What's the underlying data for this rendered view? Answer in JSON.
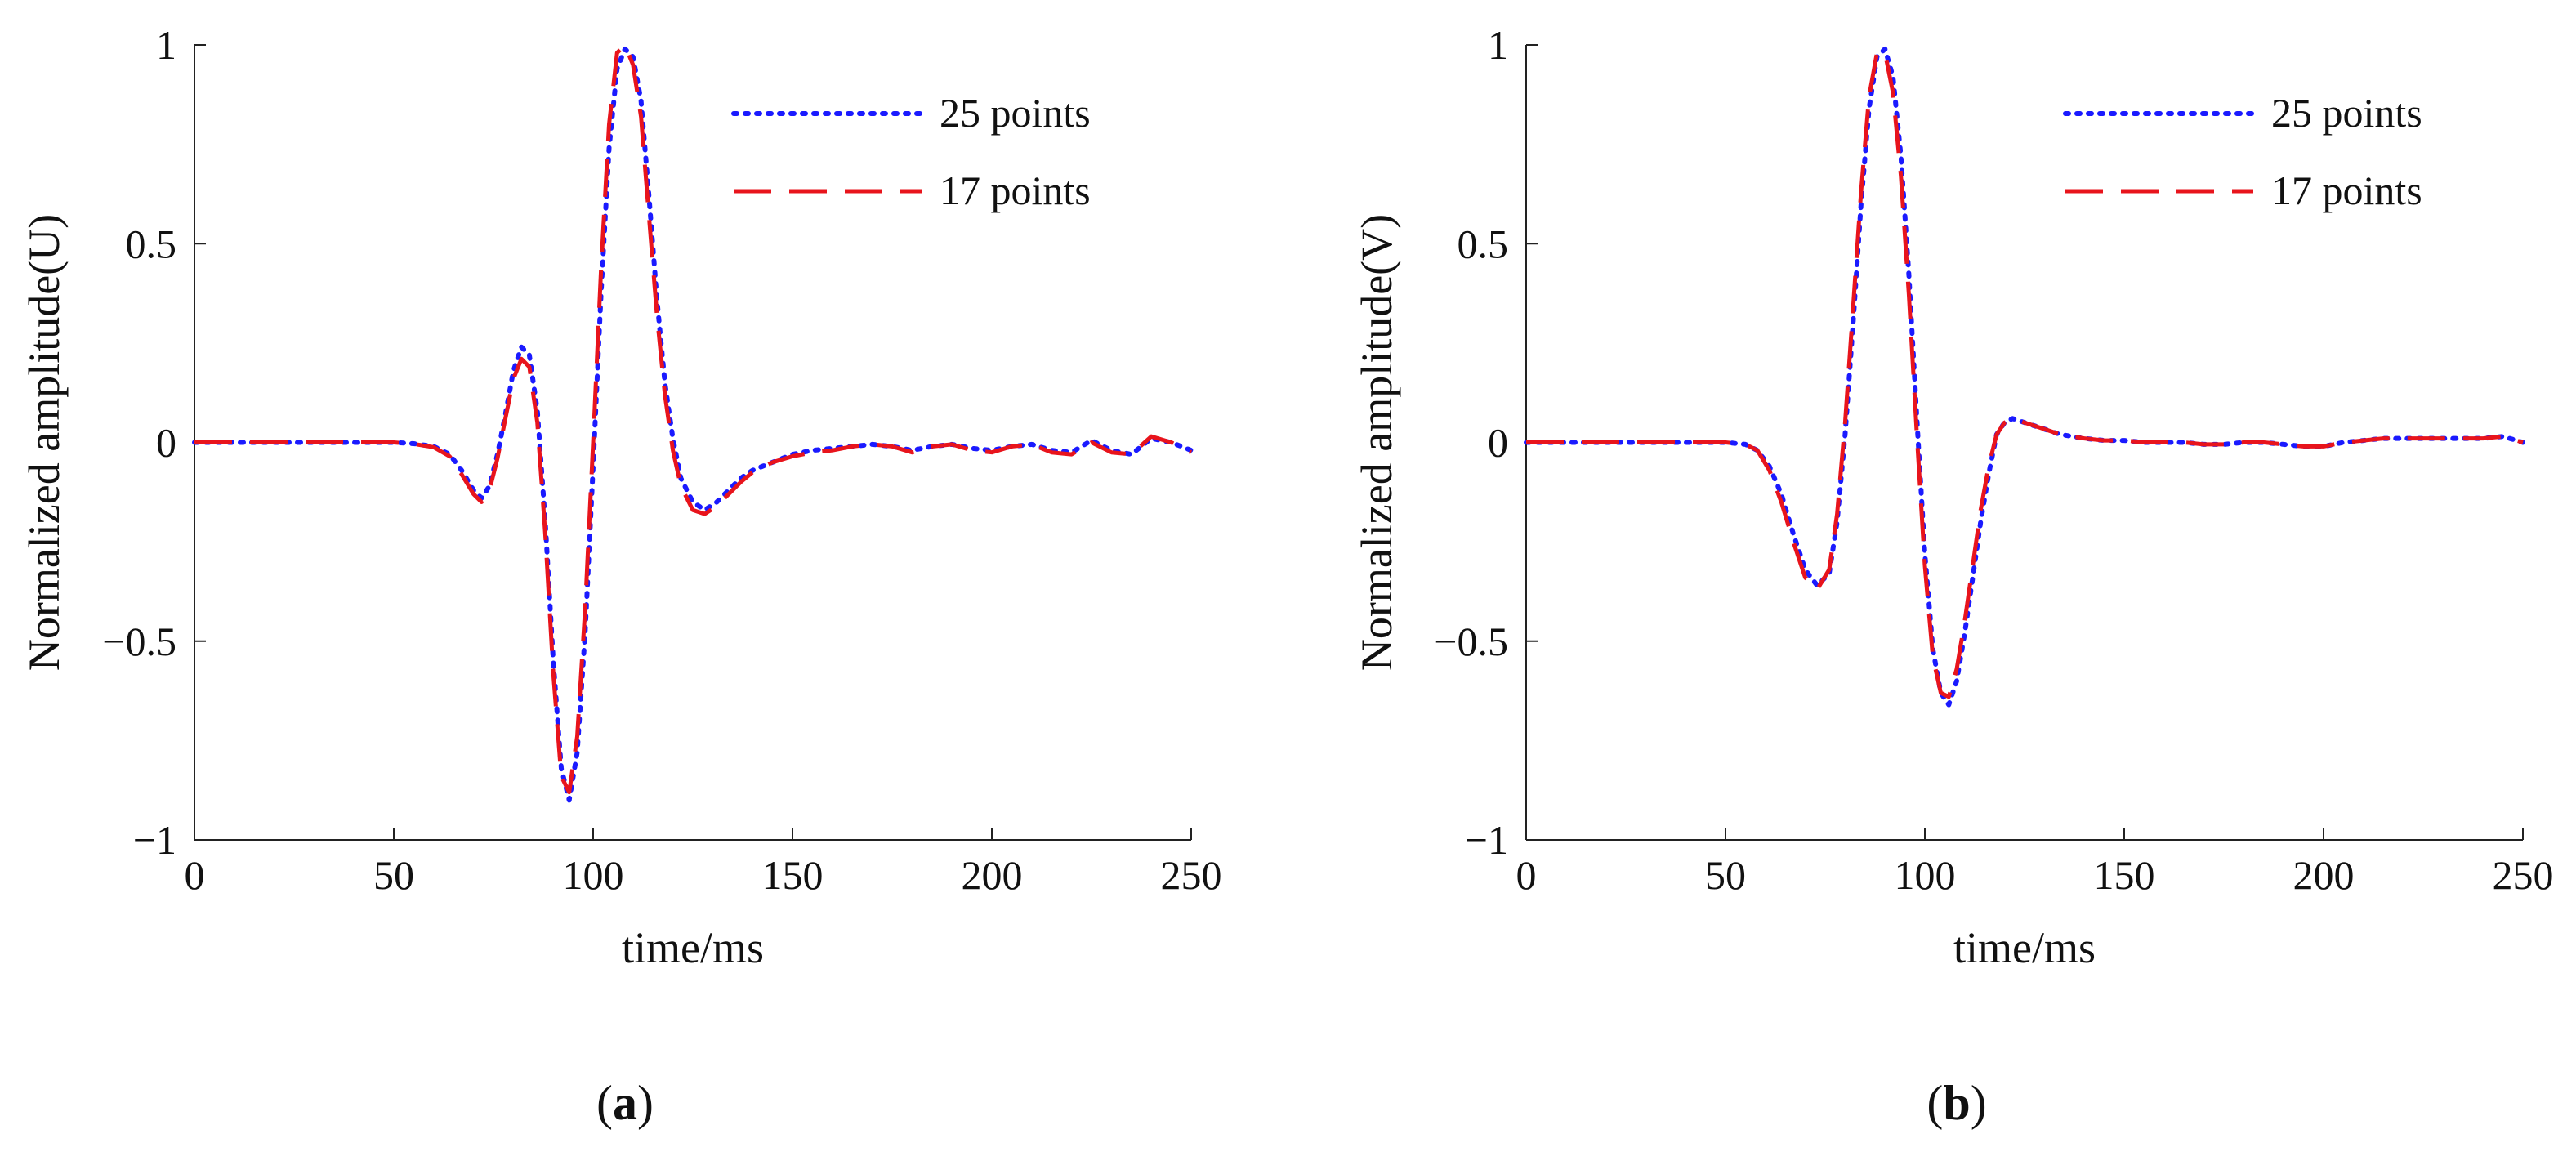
{
  "figure": {
    "panels": [
      {
        "tag_open": "(",
        "tag_letter": "a",
        "tag_close": ")"
      },
      {
        "tag_open": "(",
        "tag_letter": "b",
        "tag_close": ")"
      }
    ]
  },
  "chart_data": [
    {
      "type": "line",
      "xlabel": "time/ms",
      "ylabel": "Normalized amplitude(U)",
      "xlim": [
        0,
        250
      ],
      "ylim": [
        -1,
        1
      ],
      "xticks": [
        0,
        50,
        100,
        150,
        200,
        250
      ],
      "xtick_labels": [
        "0",
        "50",
        "100",
        "150",
        "200",
        "250"
      ],
      "yticks": [
        -1,
        -0.5,
        0,
        0.5,
        1
      ],
      "ytick_labels": [
        "−1",
        "−0.5",
        "0",
        "0.5",
        "1"
      ],
      "grid": false,
      "legend_position": "top-right",
      "series": [
        {
          "name": "25 points",
          "color": "#1a1aff",
          "style": "dotted",
          "x": [
            0,
            10,
            20,
            30,
            40,
            50,
            55,
            60,
            64,
            67,
            70,
            72,
            74,
            76,
            78,
            80,
            82,
            84,
            86,
            88,
            90,
            92,
            94,
            96,
            98,
            100,
            102,
            104,
            106,
            108,
            110,
            112,
            114,
            116,
            118,
            120,
            122,
            125,
            128,
            131,
            134,
            137,
            140,
            145,
            150,
            155,
            160,
            165,
            170,
            175,
            180,
            185,
            190,
            195,
            200,
            205,
            210,
            215,
            220,
            225,
            230,
            235,
            240,
            245,
            250
          ],
          "y": [
            0,
            0,
            0,
            0,
            0,
            0,
            -0.003,
            -0.01,
            -0.03,
            -0.07,
            -0.12,
            -0.14,
            -0.11,
            -0.03,
            0.07,
            0.18,
            0.24,
            0.22,
            0.08,
            -0.2,
            -0.55,
            -0.82,
            -0.9,
            -0.78,
            -0.48,
            -0.06,
            0.38,
            0.74,
            0.94,
            0.99,
            0.97,
            0.86,
            0.62,
            0.36,
            0.15,
            0.01,
            -0.09,
            -0.15,
            -0.17,
            -0.15,
            -0.12,
            -0.09,
            -0.07,
            -0.05,
            -0.03,
            -0.02,
            -0.015,
            -0.01,
            -0.005,
            -0.01,
            -0.02,
            -0.01,
            -0.005,
            -0.015,
            -0.02,
            -0.01,
            -0.005,
            -0.02,
            -0.025,
            0.005,
            -0.02,
            -0.03,
            0.01,
            0.0,
            -0.02
          ]
        },
        {
          "name": "17 points",
          "color": "#e8141c",
          "style": "dashed",
          "x": [
            0,
            10,
            20,
            30,
            40,
            50,
            55,
            60,
            64,
            67,
            70,
            72,
            74,
            76,
            78,
            80,
            82,
            84,
            86,
            88,
            90,
            92,
            94,
            96,
            98,
            100,
            102,
            104,
            106,
            108,
            110,
            112,
            114,
            116,
            118,
            120,
            122,
            125,
            128,
            131,
            134,
            137,
            140,
            145,
            150,
            155,
            160,
            165,
            170,
            175,
            180,
            185,
            190,
            195,
            200,
            205,
            210,
            215,
            220,
            225,
            230,
            235,
            240,
            245,
            250
          ],
          "y": [
            0,
            0,
            0,
            0,
            0,
            0,
            -0.004,
            -0.012,
            -0.035,
            -0.08,
            -0.13,
            -0.15,
            -0.12,
            -0.04,
            0.06,
            0.16,
            0.21,
            0.19,
            0.05,
            -0.23,
            -0.58,
            -0.84,
            -0.88,
            -0.74,
            -0.42,
            0.0,
            0.44,
            0.8,
            0.98,
            1.0,
            0.95,
            0.82,
            0.57,
            0.32,
            0.12,
            -0.02,
            -0.11,
            -0.17,
            -0.18,
            -0.16,
            -0.13,
            -0.1,
            -0.075,
            -0.05,
            -0.035,
            -0.025,
            -0.02,
            -0.01,
            -0.005,
            -0.01,
            -0.025,
            -0.01,
            -0.005,
            -0.02,
            -0.025,
            -0.01,
            -0.005,
            -0.025,
            -0.03,
            0.0,
            -0.025,
            -0.03,
            0.015,
            0.0,
            -0.025
          ]
        }
      ]
    },
    {
      "type": "line",
      "xlabel": "time/ms",
      "ylabel": "Normalized amplitude(V)",
      "xlim": [
        0,
        250
      ],
      "ylim": [
        -1,
        1
      ],
      "xticks": [
        0,
        50,
        100,
        150,
        200,
        250
      ],
      "xtick_labels": [
        "0",
        "50",
        "100",
        "150",
        "200",
        "250"
      ],
      "yticks": [
        -1,
        -0.5,
        0,
        0.5,
        1
      ],
      "ytick_labels": [
        "−1",
        "−0.5",
        "0",
        "0.5",
        "1"
      ],
      "grid": false,
      "legend_position": "top-right",
      "series": [
        {
          "name": "25 points",
          "color": "#1a1aff",
          "style": "dotted",
          "x": [
            0,
            10,
            20,
            30,
            40,
            50,
            55,
            58,
            61,
            64,
            67,
            70,
            73,
            76,
            78,
            80,
            82,
            84,
            86,
            88,
            90,
            92,
            94,
            96,
            98,
            100,
            102,
            104,
            106,
            108,
            110,
            112,
            114,
            116,
            118,
            120,
            122,
            125,
            128,
            131,
            134,
            137,
            140,
            145,
            150,
            155,
            160,
            165,
            170,
            175,
            180,
            185,
            190,
            195,
            200,
            205,
            210,
            215,
            220,
            225,
            230,
            235,
            240,
            245,
            250
          ],
          "y": [
            0,
            0,
            0,
            0,
            0,
            0,
            -0.005,
            -0.02,
            -0.06,
            -0.13,
            -0.23,
            -0.32,
            -0.36,
            -0.33,
            -0.2,
            0.02,
            0.3,
            0.6,
            0.84,
            0.97,
            0.99,
            0.92,
            0.72,
            0.42,
            0.06,
            -0.28,
            -0.52,
            -0.63,
            -0.66,
            -0.6,
            -0.48,
            -0.34,
            -0.2,
            -0.08,
            0.02,
            0.05,
            0.06,
            0.05,
            0.04,
            0.03,
            0.02,
            0.015,
            0.01,
            0.005,
            0.005,
            0.0,
            0.0,
            0.0,
            -0.005,
            -0.005,
            0.0,
            0.0,
            -0.005,
            -0.01,
            -0.01,
            0.0,
            0.005,
            0.01,
            0.01,
            0.01,
            0.01,
            0.01,
            0.01,
            0.015,
            0.0
          ]
        },
        {
          "name": "17 points",
          "color": "#e8141c",
          "style": "dashed",
          "x": [
            0,
            10,
            20,
            30,
            40,
            50,
            55,
            58,
            61,
            64,
            67,
            70,
            73,
            76,
            78,
            80,
            82,
            84,
            86,
            88,
            90,
            92,
            94,
            96,
            98,
            100,
            102,
            104,
            106,
            108,
            110,
            112,
            114,
            116,
            118,
            120,
            122,
            125,
            128,
            131,
            134,
            137,
            140,
            145,
            150,
            155,
            160,
            165,
            170,
            175,
            180,
            185,
            190,
            195,
            200,
            205,
            210,
            215,
            220,
            225,
            230,
            235,
            240,
            245,
            250
          ],
          "y": [
            0,
            0,
            0,
            0,
            0,
            0,
            -0.005,
            -0.02,
            -0.07,
            -0.15,
            -0.25,
            -0.34,
            -0.37,
            -0.32,
            -0.18,
            0.05,
            0.34,
            0.63,
            0.87,
            0.98,
            0.98,
            0.88,
            0.67,
            0.37,
            0.02,
            -0.31,
            -0.54,
            -0.63,
            -0.64,
            -0.57,
            -0.45,
            -0.31,
            -0.17,
            -0.06,
            0.02,
            0.05,
            0.06,
            0.05,
            0.04,
            0.03,
            0.02,
            0.015,
            0.01,
            0.005,
            0.005,
            0.0,
            0.0,
            0.0,
            -0.005,
            -0.005,
            0.0,
            0.0,
            -0.005,
            -0.01,
            -0.01,
            0.0,
            0.005,
            0.01,
            0.01,
            0.01,
            0.01,
            0.01,
            0.01,
            0.015,
            0.0
          ]
        }
      ]
    }
  ]
}
